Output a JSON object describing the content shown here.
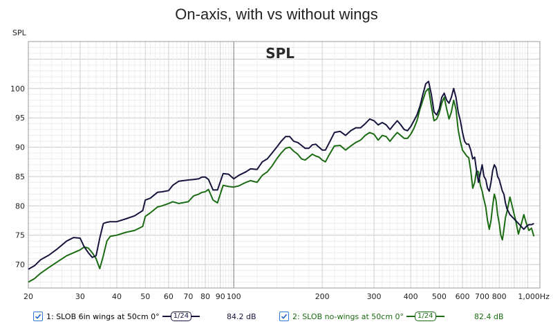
{
  "chart_data": {
    "type": "line",
    "title": "On-axis, with vs without wings",
    "ylabel": "SPL",
    "watermark": "SPL",
    "xscale": "log",
    "xlim": [
      20,
      1100
    ],
    "ylim": [
      66,
      108
    ],
    "ytick_labels": [
      "70",
      "75",
      "80",
      "85",
      "90",
      "95",
      "100"
    ],
    "ytick_values": [
      70,
      75,
      80,
      85,
      90,
      95,
      100
    ],
    "xtick_labels": [
      "20",
      "30",
      "40",
      "50",
      "60",
      "70",
      "80",
      "90",
      "100",
      "200",
      "300",
      "400",
      "500",
      "600",
      "700",
      "800",
      "1,000Hz"
    ],
    "xtick_values": [
      20,
      30,
      40,
      50,
      60,
      70,
      80,
      90,
      100,
      200,
      300,
      400,
      500,
      600,
      700,
      800,
      1000
    ],
    "grid": true,
    "legend_position": "bottom",
    "series": [
      {
        "name": "1: SLOB 6in wings at 50cm 0°",
        "color": "#14143c",
        "smoothing": "1/24",
        "level": "84.2 dB",
        "x": [
          20,
          21,
          22,
          23.5,
          25,
          27,
          28.5,
          30,
          31,
          32,
          33,
          34,
          35,
          36,
          37,
          38,
          40,
          43,
          46,
          49,
          50,
          52,
          55,
          57,
          60,
          62,
          65,
          70,
          73,
          76,
          78,
          80,
          82,
          85,
          88,
          92,
          96,
          100,
          104,
          110,
          114,
          120,
          125,
          130,
          135,
          140,
          145,
          150,
          155,
          160,
          165,
          170,
          175,
          180,
          185,
          190,
          195,
          200,
          205,
          210,
          220,
          230,
          240,
          250,
          260,
          270,
          280,
          290,
          300,
          310,
          320,
          330,
          340,
          350,
          360,
          370,
          380,
          390,
          400,
          410,
          420,
          430,
          440,
          450,
          460,
          470,
          480,
          490,
          500,
          510,
          520,
          530,
          540,
          550,
          560,
          570,
          580,
          590,
          600,
          610,
          620,
          630,
          640,
          650,
          660,
          670,
          680,
          690,
          700,
          710,
          720,
          730,
          740,
          750,
          760,
          770,
          780,
          790,
          800,
          810,
          820,
          830,
          840,
          850,
          870,
          890,
          910,
          930,
          950,
          970,
          990,
          1010,
          1030,
          1050
        ],
        "values": [
          69.2,
          69.8,
          70.8,
          71.6,
          72.6,
          74.0,
          74.6,
          74.5,
          73.0,
          72.0,
          71.2,
          71.5,
          74.5,
          77.0,
          77.2,
          77.3,
          77.3,
          77.8,
          78.3,
          79.2,
          81.0,
          81.3,
          82.3,
          82.4,
          82.6,
          83.5,
          84.2,
          84.4,
          84.5,
          84.6,
          84.9,
          84.9,
          84.5,
          82.7,
          82.7,
          85.5,
          85.4,
          84.6,
          85.2,
          85.8,
          86.3,
          86.2,
          87.5,
          88.0,
          89.0,
          90.0,
          91.0,
          91.8,
          91.8,
          91.0,
          90.8,
          90.3,
          89.8,
          89.8,
          90.4,
          90.5,
          90.0,
          89.5,
          89.5,
          90.5,
          92.5,
          92.7,
          92.0,
          92.8,
          93.3,
          93.3,
          94.0,
          94.8,
          94.5,
          93.8,
          94.2,
          93.8,
          93.0,
          93.8,
          94.5,
          93.8,
          93.0,
          92.8,
          93.5,
          94.5,
          95.5,
          97.0,
          99.0,
          100.8,
          101.2,
          99.0,
          96.0,
          95.5,
          96.5,
          98.5,
          99.2,
          98.0,
          97.5,
          98.5,
          100.0,
          98.5,
          96.0,
          94.5,
          92.5,
          91.0,
          90.5,
          90.5,
          89.5,
          88.0,
          88.3,
          86.0,
          84.0,
          85.5,
          87.0,
          85.0,
          84.5,
          83.0,
          82.5,
          84.0,
          86.0,
          87.0,
          86.5,
          85.0,
          84.5,
          83.5,
          82.5,
          82.0,
          80.5,
          79.5,
          78.5,
          78.0,
          77.5,
          77.0,
          76.5,
          76.0,
          76.5,
          76.8,
          76.8,
          77.0
        ]
      },
      {
        "name": "2: SLOB no-wings at 50cm 0°",
        "color": "#1a6b12",
        "smoothing": "1/24",
        "level": "82.4 dB",
        "x": [
          20,
          21,
          22,
          23.5,
          25,
          27,
          28.5,
          30,
          31,
          32,
          33,
          34,
          35,
          36,
          37,
          38,
          40,
          43,
          46,
          49,
          50,
          52,
          55,
          57,
          60,
          62,
          65,
          70,
          73,
          76,
          78,
          80,
          82,
          85,
          88,
          92,
          96,
          100,
          104,
          110,
          114,
          120,
          125,
          130,
          135,
          140,
          145,
          150,
          155,
          160,
          165,
          170,
          175,
          180,
          185,
          190,
          195,
          200,
          205,
          210,
          220,
          230,
          240,
          250,
          260,
          270,
          280,
          290,
          300,
          310,
          320,
          330,
          340,
          350,
          360,
          370,
          380,
          390,
          400,
          410,
          420,
          430,
          440,
          450,
          460,
          470,
          480,
          490,
          500,
          510,
          520,
          530,
          540,
          550,
          560,
          570,
          580,
          590,
          600,
          610,
          620,
          630,
          640,
          650,
          660,
          670,
          680,
          690,
          700,
          710,
          720,
          730,
          740,
          750,
          760,
          770,
          780,
          790,
          800,
          810,
          820,
          830,
          840,
          850,
          870,
          890,
          910,
          930,
          950,
          970,
          990,
          1010,
          1030,
          1050
        ],
        "values": [
          67.0,
          67.6,
          68.5,
          69.5,
          70.4,
          71.5,
          72.0,
          72.5,
          73.0,
          72.8,
          72.0,
          71.0,
          69.3,
          71.5,
          74.0,
          74.8,
          75.0,
          75.5,
          75.8,
          76.5,
          78.2,
          78.8,
          79.8,
          80.0,
          80.4,
          80.7,
          80.4,
          80.7,
          81.7,
          82.0,
          82.3,
          82.4,
          82.8,
          81.0,
          80.5,
          83.5,
          83.3,
          83.2,
          83.4,
          84.0,
          84.3,
          84.0,
          85.2,
          85.8,
          86.8,
          88.0,
          89.0,
          89.8,
          90.0,
          89.3,
          88.8,
          88.0,
          87.8,
          88.3,
          88.8,
          88.5,
          88.3,
          87.8,
          87.5,
          88.5,
          90.2,
          90.3,
          89.5,
          90.2,
          90.8,
          91.2,
          92.0,
          92.5,
          92.2,
          91.2,
          92.0,
          91.8,
          91.0,
          91.8,
          92.5,
          92.0,
          91.5,
          91.5,
          92.2,
          93.2,
          94.5,
          96.5,
          98.0,
          99.5,
          100.0,
          97.0,
          94.5,
          94.8,
          95.8,
          97.5,
          98.5,
          96.5,
          94.8,
          96.0,
          98.0,
          96.5,
          93.0,
          91.0,
          89.5,
          89.0,
          88.5,
          88.2,
          86.0,
          83.0,
          84.0,
          86.0,
          85.8,
          83.5,
          82.5,
          81.0,
          79.8,
          77.5,
          76.0,
          77.5,
          80.0,
          82.0,
          81.0,
          78.5,
          77.0,
          75.0,
          74.2,
          76.0,
          78.0,
          79.0,
          81.5,
          79.5,
          77.5,
          75.2,
          76.8,
          78.5,
          77.0,
          75.8,
          76.2,
          74.8
        ]
      }
    ]
  },
  "legend": {
    "items": [
      {
        "label": "1: SLOB 6in wings at 50cm 0°",
        "smoothing": "1/24",
        "level": "84.2 dB",
        "color": "#14143c"
      },
      {
        "label": "2: SLOB no-wings at 50cm 0°",
        "smoothing": "1/24",
        "level": "82.4 dB",
        "color": "#1a6b12"
      }
    ]
  }
}
